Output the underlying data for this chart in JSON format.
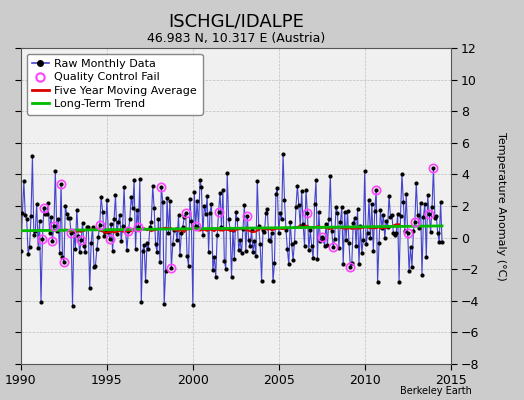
{
  "title": "ISCHGL/IDALPE",
  "subtitle": "46.983 N, 10.317 E (Austria)",
  "ylabel": "Temperature Anomaly (°C)",
  "credit": "Berkeley Earth",
  "xlim": [
    1990,
    2015
  ],
  "ylim": [
    -8,
    12
  ],
  "yticks": [
    -8,
    -6,
    -4,
    -2,
    0,
    2,
    4,
    6,
    8,
    10,
    12
  ],
  "xticks": [
    1990,
    1995,
    2000,
    2005,
    2010,
    2015
  ],
  "fig_bg_color": "#cccccc",
  "plot_bg_color": "#f0f0f0",
  "grid_color": "#aaaaaa",
  "raw_line_color": "#4444cc",
  "raw_marker_color": "#000000",
  "moving_avg_color": "#dd0000",
  "trend_color": "#00bb00",
  "qc_fail_color": "#ff44ff",
  "title_fontsize": 13,
  "subtitle_fontsize": 9,
  "ylabel_fontsize": 8,
  "tick_fontsize": 9,
  "legend_fontsize": 8,
  "seed": 42,
  "n_months": 295,
  "start_year": 1990.0,
  "moving_avg_window": 60
}
